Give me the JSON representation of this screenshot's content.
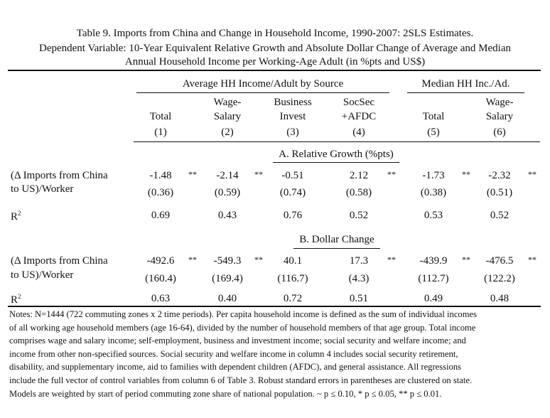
{
  "title": {
    "line1": "Table 9. Imports from China and Change in Household Income, 1990-2007: 2SLS Estimates.",
    "line2": "Dependent Variable: 10-Year Equivalent Relative Growth and Absolute Dollar Change of Average and Median",
    "line3": "Annual Household Income per Working-Age Adult (in %pts and US$)"
  },
  "groups": {
    "average": "Average HH Income/Adult by Source",
    "median": "Median HH Inc./Ad."
  },
  "columns": [
    {
      "l1": "",
      "l2": "Total",
      "num": "(1)"
    },
    {
      "l1": "Wage-",
      "l2": "Salary",
      "num": "(2)"
    },
    {
      "l1": "Business",
      "l2": "Invest",
      "num": "(3)"
    },
    {
      "l1": "SocSec",
      "l2": "+AFDC",
      "num": "(4)"
    },
    {
      "l1": "",
      "l2": "Total",
      "num": "(5)"
    },
    {
      "l1": "Wage-",
      "l2": "Salary",
      "num": "(6)"
    }
  ],
  "panelA": {
    "title": "A. Relative Growth (%pts)",
    "row_label_1": "(Δ Imports from China",
    "row_label_2": "to US)/Worker",
    "coefs": [
      "-1.48",
      "-2.14",
      "-0.51",
      "2.12",
      "-1.73",
      "-2.32"
    ],
    "stars": [
      "**",
      "**",
      "",
      "**",
      "**",
      "**"
    ],
    "ses": [
      "(0.36)",
      "(0.59)",
      "(0.74)",
      "(0.58)",
      "(0.38)",
      "(0.51)"
    ],
    "r2_label": "R",
    "r2": [
      "0.69",
      "0.43",
      "0.76",
      "0.52",
      "0.53",
      "0.52"
    ]
  },
  "panelB": {
    "title": "B. Dollar Change",
    "row_label_1": "(Δ Imports from China",
    "row_label_2": "to US)/Worker",
    "coefs": [
      "-492.6",
      "-549.3",
      "40.1",
      "17.3",
      "-439.9",
      "-476.5"
    ],
    "stars": [
      "**",
      "**",
      "",
      "**",
      "**",
      "**"
    ],
    "ses": [
      "(160.4)",
      "(169.4)",
      "(116.7)",
      "(4.3)",
      "(112.7)",
      "(122.2)"
    ],
    "r2_label": "R",
    "r2": [
      "0.63",
      "0.40",
      "0.72",
      "0.51",
      "0.49",
      "0.48"
    ]
  },
  "r2_sup": "2",
  "notes": [
    "Notes: N=1444 (722 commuting zones x 2 time periods). Per capita household income is defined as the sum of individual incomes",
    "of all working age household members (age 16-64), divided by the number of household members of that age group. Total income",
    "comprises wage and salary income; self-employment, business and investment income; social security and welfare income; and",
    "income from other non-specified sources. Social security and welfare income in column 4 includes social security retirement,",
    "disability, and supplementary income, aid to families with dependent children (AFDC), and general assistance. All regressions",
    "include the full vector of control variables from column 6 of Table 3. Robust standard errors in parentheses are clustered on state.",
    "Models are weighted by start of period commuting zone share of national population.  ~ p ≤ 0.10, * p ≤ 0.05, ** p ≤ 0.01."
  ]
}
